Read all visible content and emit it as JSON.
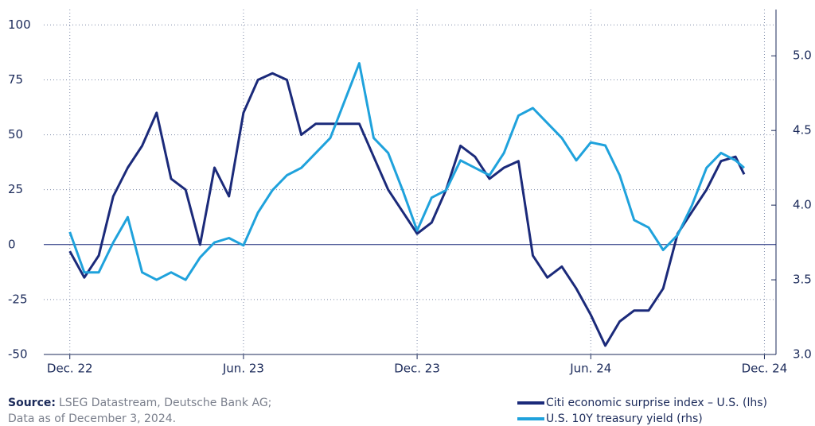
{
  "chart_data": {
    "type": "line",
    "x": [
      0,
      0.5,
      1,
      1.5,
      2,
      2.5,
      3,
      3.5,
      4,
      4.5,
      5,
      5.5,
      6,
      6.5,
      7,
      7.5,
      8,
      8.5,
      9,
      9.5,
      10,
      10.5,
      11,
      11.5,
      12,
      12.5,
      13,
      13.5,
      14,
      14.5,
      15,
      15.5,
      16,
      16.5,
      17,
      17.5,
      18,
      18.5,
      19,
      19.5,
      20,
      20.5,
      21,
      21.5,
      22,
      22.5,
      23,
      23.3
    ],
    "series": [
      {
        "name": "Citi economic surprise index – U.S. (lhs)",
        "color": "#1b2a7a",
        "axis": "y",
        "values": [
          -3,
          -15,
          -5,
          22,
          35,
          45,
          60,
          30,
          25,
          0,
          35,
          22,
          60,
          75,
          78,
          75,
          50,
          55,
          55,
          55,
          55,
          40,
          25,
          15,
          5,
          10,
          25,
          45,
          40,
          30,
          35,
          38,
          -5,
          -15,
          -10,
          -20,
          -32,
          -46,
          -35,
          -30,
          -30,
          -20,
          5,
          15,
          25,
          38,
          40,
          32
        ]
      },
      {
        "name": "U.S. 10Y treasury yield (rhs)",
        "color": "#1fa2dc",
        "axis": "y2",
        "values": [
          3.82,
          3.55,
          3.55,
          3.75,
          3.92,
          3.55,
          3.5,
          3.55,
          3.5,
          3.65,
          3.75,
          3.78,
          3.73,
          3.95,
          4.1,
          4.2,
          4.25,
          4.35,
          4.45,
          4.7,
          4.95,
          4.45,
          4.35,
          4.1,
          3.83,
          4.05,
          4.1,
          4.3,
          4.25,
          4.2,
          4.35,
          4.6,
          4.65,
          4.55,
          4.45,
          4.3,
          4.42,
          4.4,
          4.2,
          3.9,
          3.85,
          3.7,
          3.8,
          4.0,
          4.25,
          4.35,
          4.3,
          4.25
        ]
      }
    ],
    "xlim": [
      -0.9,
      24.4
    ],
    "xticks": [
      {
        "value": 0,
        "label": "Dec. 22"
      },
      {
        "value": 6,
        "label": "Jun. 23"
      },
      {
        "value": 12,
        "label": "Dec. 23"
      },
      {
        "value": 18,
        "label": "Jun. 24"
      },
      {
        "value": 24,
        "label": "Dec. 24"
      }
    ],
    "ylim": [
      -50,
      107
    ],
    "yticks": [
      -50,
      -25,
      0,
      25,
      50,
      75,
      100
    ],
    "y2lim": [
      3.0,
      5.31
    ],
    "y2ticks": [
      {
        "value": 3.0,
        "label": "3.0"
      },
      3.5,
      {
        "value": 4.0,
        "label": "4.0"
      },
      4.5,
      {
        "value": 5.0,
        "label": "5.0"
      }
    ],
    "grid": true,
    "source_label": "Source:",
    "source_text": "LSEG Datastream, Deutsche Bank AG;",
    "note": "Data as of December 3, 2024."
  }
}
